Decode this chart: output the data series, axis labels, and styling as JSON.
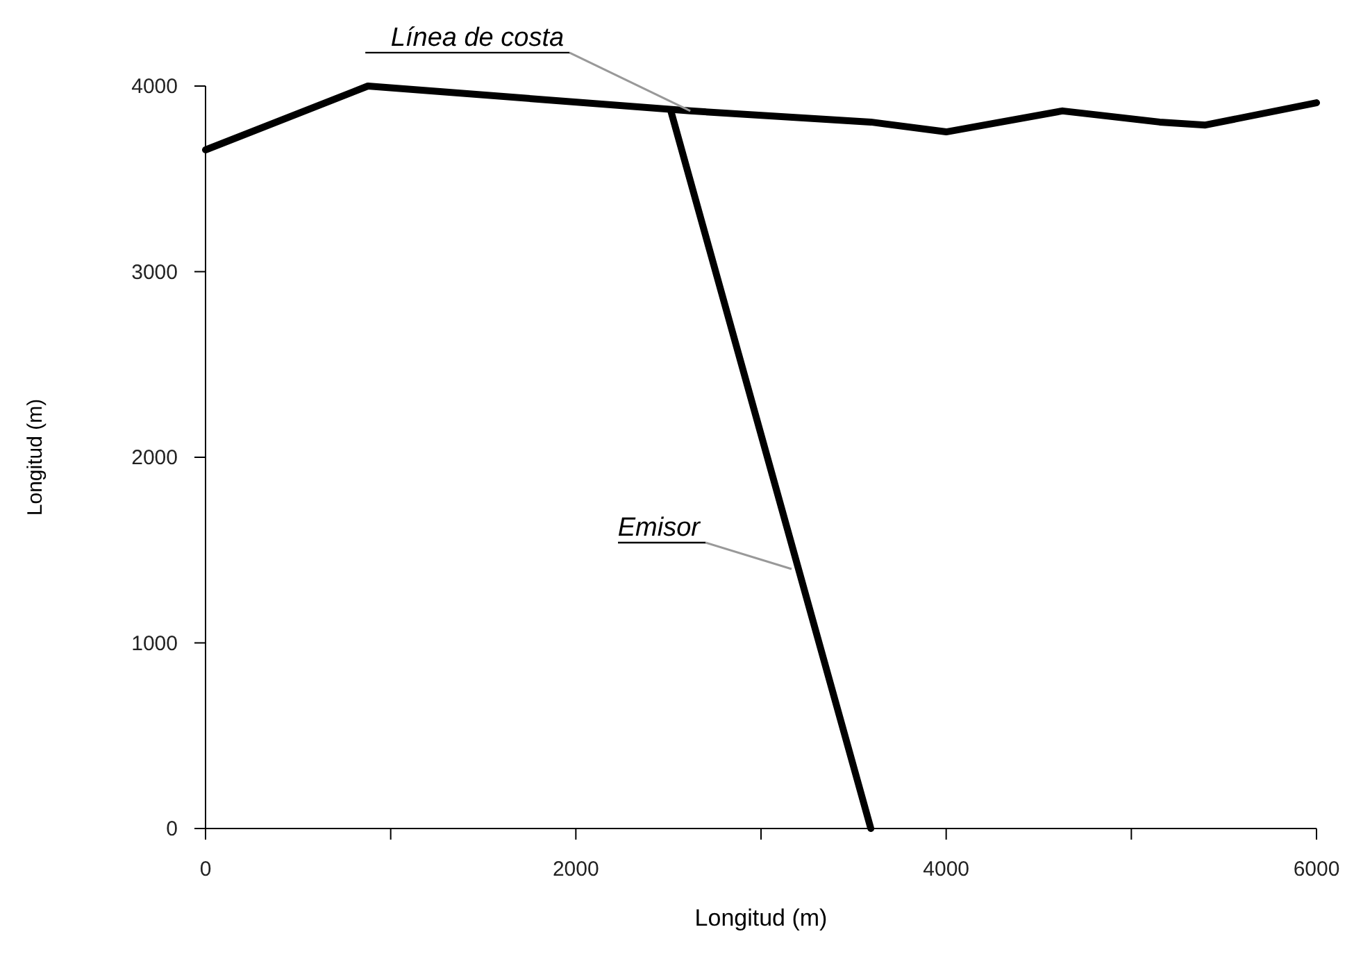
{
  "chart_data": {
    "type": "line",
    "xlabel": "Longitud (m)",
    "ylabel": "Longitud (m)",
    "xlim": [
      0,
      6000
    ],
    "ylim": [
      0,
      4000
    ],
    "xticks": [
      0,
      {
        "value": 1000,
        "label": null
      },
      2000,
      {
        "value": 3000,
        "label": null
      },
      4000,
      {
        "value": 5000,
        "label": null
      },
      6000
    ],
    "yticks": [
      0,
      1000,
      2000,
      3000,
      4000
    ],
    "grid": false,
    "marker": "none",
    "line_style": "solid",
    "series": [
      {
        "color": "#000000",
        "x": [
          0,
          877,
          2618,
          3593,
          4000,
          4628,
          5153,
          5400,
          6000
        ],
        "values": [
          3656,
          4000,
          3866,
          3806,
          3753,
          3866,
          3806,
          3790,
          3910
        ]
      },
      {
        "color": "#000000",
        "x": [
          2513,
          3593
        ],
        "values": [
          3866,
          0
        ]
      }
    ],
    "annotations": [
      {
        "text": "Línea de costa",
        "x": 2618,
        "y": 3866
      },
      {
        "text": "Emisor",
        "x": 3165,
        "y": 1398
      }
    ]
  }
}
